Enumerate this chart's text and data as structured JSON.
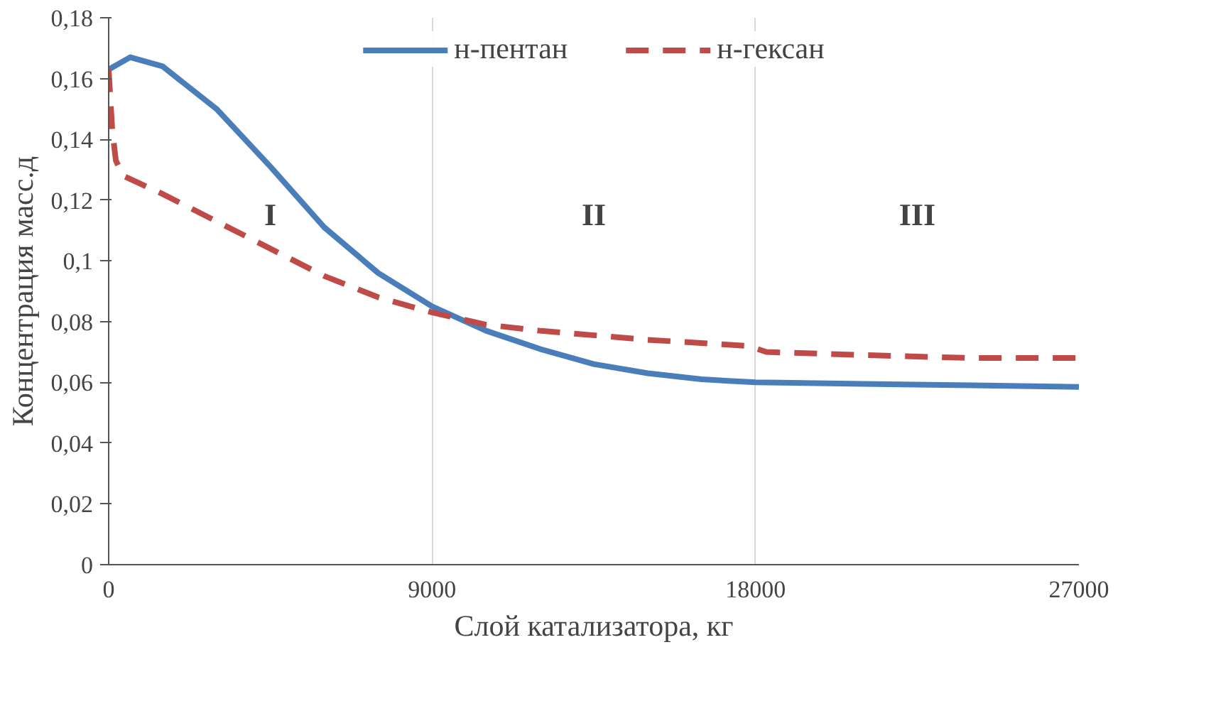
{
  "chart_data": {
    "type": "line",
    "xlabel": "Слой катализатора, кг",
    "ylabel": "Концентрация масс.д",
    "xlim": [
      0,
      27000
    ],
    "xticks": [
      0,
      9000,
      18000,
      27000
    ],
    "ylim": [
      0,
      0.18
    ],
    "yticks": [
      {
        "value": 0,
        "label": "0"
      },
      {
        "value": 0.02,
        "label": "0,02"
      },
      {
        "value": 0.04,
        "label": "0,04"
      },
      {
        "value": 0.06,
        "label": "0,06"
      },
      {
        "value": 0.08,
        "label": "0,08"
      },
      {
        "value": 0.1,
        "label": "0,1"
      },
      {
        "value": 0.12,
        "label": "0,12"
      },
      {
        "value": 0.14,
        "label": "0,14"
      },
      {
        "value": 0.16,
        "label": "0,16"
      },
      {
        "value": 0.18,
        "label": "0,18"
      }
    ],
    "grid": "x",
    "legend": "top",
    "series": [
      {
        "name": "н-пентан",
        "color": "#4a7ebb",
        "line_style": "solid",
        "x": [
          0,
          600,
          1500,
          3000,
          4500,
          6000,
          7500,
          9000,
          10500,
          12000,
          13500,
          15000,
          16500,
          18000,
          21000,
          24000,
          27000
        ],
        "values": [
          0.163,
          0.167,
          0.164,
          0.15,
          0.131,
          0.111,
          0.096,
          0.085,
          0.077,
          0.071,
          0.066,
          0.063,
          0.061,
          0.06,
          0.0595,
          0.059,
          0.0585
        ]
      },
      {
        "name": "н-гексан",
        "color": "#be4b48",
        "line_style": "dashed",
        "x": [
          0,
          100,
          200,
          400,
          1500,
          3000,
          4500,
          6000,
          7500,
          9000,
          10500,
          12000,
          15000,
          17800,
          18300,
          21000,
          24000,
          27000
        ],
        "values": [
          0.163,
          0.143,
          0.133,
          0.128,
          0.122,
          0.113,
          0.104,
          0.095,
          0.088,
          0.083,
          0.079,
          0.077,
          0.074,
          0.072,
          0.07,
          0.069,
          0.068,
          0.068
        ]
      }
    ],
    "annotations": [
      "I",
      "II",
      "III"
    ]
  }
}
